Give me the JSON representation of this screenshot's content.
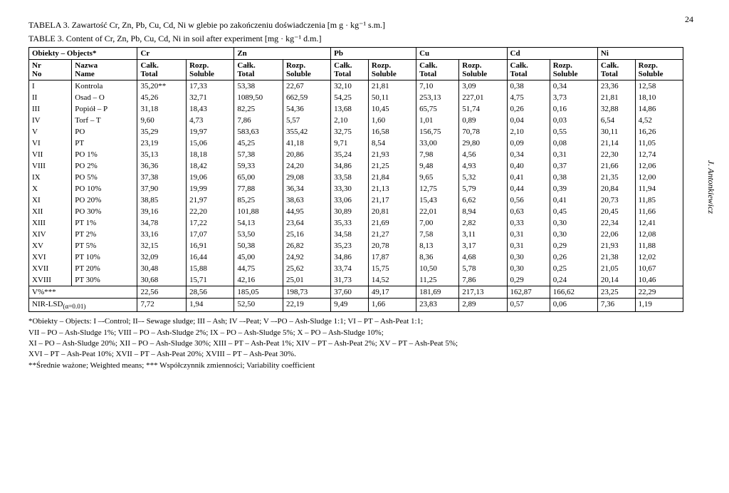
{
  "page_number": "24",
  "side_author": "J. Antonkiewicz",
  "caption_pl": "TABELA 3. Zawartość Cr, Zn, Pb, Cu, Cd, Ni w glebie po zakończeniu doświadczenia [m g · kg⁻¹ s.m.]",
  "caption_en": "TABLE 3. Content of Cr, Zn, Pb, Cu, Cd, Ni in soil after experiment [mg · kg⁻¹ d.m.]",
  "head": {
    "objects": "Obiekty – Objects*",
    "elements": [
      "Cr",
      "Zn",
      "Pb",
      "Cu",
      "Cd",
      "Ni"
    ],
    "nr": "Nr",
    "no": "No",
    "nazwa": "Nazwa",
    "name": "Name",
    "calk": "Całk.",
    "total": "Total",
    "rozp": "Rozp.",
    "soluble": "Soluble"
  },
  "rows": [
    {
      "nr": "I",
      "name": "Kontrola",
      "v": [
        "35,20**",
        "17,33",
        "53,38",
        "22,67",
        "32,10",
        "21,81",
        "7,10",
        "3,09",
        "0,38",
        "0,34",
        "23,36",
        "12,58"
      ]
    },
    {
      "nr": "II",
      "name": "Osad – O",
      "v": [
        "45,26",
        "32,71",
        "1089,50",
        "662,59",
        "54,25",
        "50,11",
        "253,13",
        "227,01",
        "4,75",
        "3,73",
        "21,81",
        "18,10"
      ]
    },
    {
      "nr": "III",
      "name": "Popiół – P",
      "v": [
        "31,18",
        "18,43",
        "82,25",
        "54,36",
        "13,68",
        "10,45",
        "65,75",
        "51,74",
        "0,26",
        "0,16",
        "32,88",
        "14,86"
      ]
    },
    {
      "nr": "IV",
      "name": "Torf – T",
      "v": [
        "9,60",
        "4,73",
        "7,86",
        "5,57",
        "2,10",
        "1,60",
        "1,01",
        "0,89",
        "0,04",
        "0,03",
        "6,54",
        "4,52"
      ]
    },
    {
      "nr": "V",
      "name": "PO",
      "v": [
        "35,29",
        "19,97",
        "583,63",
        "355,42",
        "32,75",
        "16,58",
        "156,75",
        "70,78",
        "2,10",
        "0,55",
        "30,11",
        "16,26"
      ]
    },
    {
      "nr": "VI",
      "name": "PT",
      "v": [
        "23,19",
        "15,06",
        "45,25",
        "41,18",
        "9,71",
        "8,54",
        "33,00",
        "29,80",
        "0,09",
        "0,08",
        "21,14",
        "11,05"
      ]
    },
    {
      "nr": "VII",
      "name": "PO 1%",
      "v": [
        "35,13",
        "18,18",
        "57,38",
        "20,86",
        "35,24",
        "21,93",
        "7,98",
        "4,56",
        "0,34",
        "0,31",
        "22,30",
        "12,74"
      ]
    },
    {
      "nr": "VIII",
      "name": "PO 2%",
      "v": [
        "36,36",
        "18,42",
        "59,33",
        "24,20",
        "34,86",
        "21,25",
        "9,48",
        "4,93",
        "0,40",
        "0,37",
        "21,66",
        "12,06"
      ]
    },
    {
      "nr": "IX",
      "name": "PO 5%",
      "v": [
        "37,38",
        "19,06",
        "65,00",
        "29,08",
        "33,58",
        "21,84",
        "9,65",
        "5,32",
        "0,41",
        "0,38",
        "21,35",
        "12,00"
      ]
    },
    {
      "nr": "X",
      "name": "PO 10%",
      "v": [
        "37,90",
        "19,99",
        "77,88",
        "36,34",
        "33,30",
        "21,13",
        "12,75",
        "5,79",
        "0,44",
        "0,39",
        "20,84",
        "11,94"
      ]
    },
    {
      "nr": "XI",
      "name": "PO 20%",
      "v": [
        "38,85",
        "21,97",
        "85,25",
        "38,63",
        "33,06",
        "21,17",
        "15,43",
        "6,62",
        "0,56",
        "0,41",
        "20,73",
        "11,85"
      ]
    },
    {
      "nr": "XII",
      "name": "PO 30%",
      "v": [
        "39,16",
        "22,20",
        "101,88",
        "44,95",
        "30,89",
        "20,81",
        "22,01",
        "8,94",
        "0,63",
        "0,45",
        "20,45",
        "11,66"
      ]
    },
    {
      "nr": "XIII",
      "name": "PT 1%",
      "v": [
        "34,78",
        "17,22",
        "54,13",
        "23,64",
        "35,33",
        "21,69",
        "7,00",
        "2,82",
        "0,33",
        "0,30",
        "22,34",
        "12,41"
      ]
    },
    {
      "nr": "XIV",
      "name": "PT 2%",
      "v": [
        "33,16",
        "17,07",
        "53,50",
        "25,16",
        "34,58",
        "21,27",
        "7,58",
        "3,11",
        "0,31",
        "0,30",
        "22,06",
        "12,08"
      ]
    },
    {
      "nr": "XV",
      "name": "PT 5%",
      "v": [
        "32,15",
        "16,91",
        "50,38",
        "26,82",
        "35,23",
        "20,78",
        "8,13",
        "3,17",
        "0,31",
        "0,29",
        "21,93",
        "11,88"
      ]
    },
    {
      "nr": "XVI",
      "name": "PT 10%",
      "v": [
        "32,09",
        "16,44",
        "45,00",
        "24,92",
        "34,86",
        "17,87",
        "8,36",
        "4,68",
        "0,30",
        "0,26",
        "21,38",
        "12,02"
      ]
    },
    {
      "nr": "XVII",
      "name": "PT 20%",
      "v": [
        "30,48",
        "15,88",
        "44,75",
        "25,62",
        "33,74",
        "15,75",
        "10,50",
        "5,78",
        "0,30",
        "0,25",
        "21,05",
        "10,67"
      ]
    },
    {
      "nr": "XVIII",
      "name": "PT 30%",
      "v": [
        "30,68",
        "15,71",
        "42,16",
        "25,01",
        "31,73",
        "14,52",
        "11,25",
        "7,86",
        "0,29",
        "0,24",
        "20,14",
        "10,46"
      ]
    }
  ],
  "vpct": {
    "label": "V%***",
    "v": [
      "22,56",
      "28,56",
      "185,05",
      "198,73",
      "37,60",
      "49,17",
      "181,69",
      "217,13",
      "162,87",
      "166,62",
      "23,25",
      "22,29"
    ]
  },
  "lsd": {
    "label": "NIR-LSD",
    "sub": "(α=0.01)",
    "v": [
      "7,72",
      "1,94",
      "52,50",
      "22,19",
      "9,49",
      "1,66",
      "23,83",
      "2,89",
      "0,57",
      "0,06",
      "7,36",
      "1,19"
    ]
  },
  "footnotes": {
    "l1": "*Obiekty – Objects: I –-Control; II–- Sewage sludge; III – Ash; IV –-Peat; V –-PO – Ash-Sludge 1:1; VI – PT – Ash-Peat 1:1;",
    "l2": "VII – PO – Ash-Sludge 1%; VIII – PO – Ash-Sludge 2%; IX – PO – Ash-Sludge 5%; X – PO – Ash-Sludge 10%;",
    "l3": "XI – PO – Ash-Sludge 20%; XII – PO – Ash-Sludge 30%; XIII – PT – Ash-Peat 1%; XIV – PT – Ash-Peat 2%; XV – PT – Ash-Peat 5%;",
    "l4": "XVI – PT – Ash-Peat 10%; XVII – PT – Ash-Peat 20%; XVIII – PT – Ash-Peat 30%.",
    "l5": "**Średnie ważone; Weighted means; *** Współczynnik zmienności; Variability coefficient"
  }
}
